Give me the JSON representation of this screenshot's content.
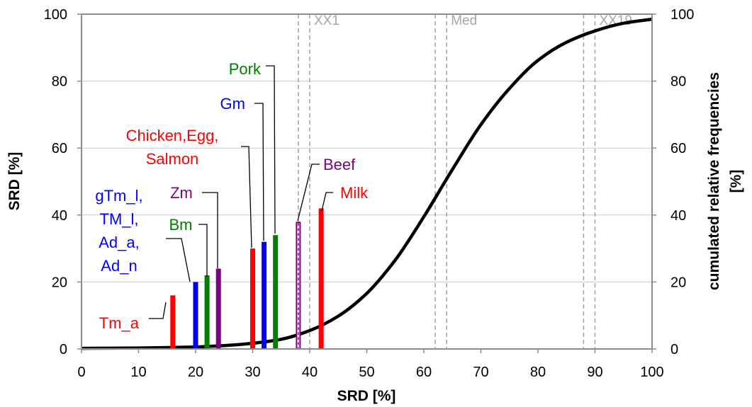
{
  "chart_data": {
    "type": "bar",
    "title": "",
    "xlabel": "SRD [%]",
    "ylabel": "SRD [%]",
    "y2label_line1": "cumulated relative frequencies",
    "y2label_line2": "[%]",
    "xlim": [
      0,
      100
    ],
    "ylim": [
      0,
      100
    ],
    "y2lim": [
      0,
      100
    ],
    "x_ticks": [
      0,
      10,
      20,
      30,
      40,
      50,
      60,
      70,
      80,
      90,
      100
    ],
    "y_ticks": [
      0,
      20,
      40,
      60,
      80,
      100
    ],
    "y2_ticks": [
      0,
      20,
      40,
      60,
      80,
      100
    ],
    "grid": "horizontal",
    "colors": {
      "red": "#ff0000",
      "blue": "#0000ff",
      "green": "#008000",
      "purple": "#7f007f",
      "curve": "#000000",
      "reference": "#a6a6a6"
    },
    "bars": [
      {
        "x": 16,
        "value": 16,
        "color": "red"
      },
      {
        "x": 20,
        "value": 20,
        "color": "blue"
      },
      {
        "x": 22,
        "value": 22,
        "color": "green"
      },
      {
        "x": 24,
        "value": 24,
        "color": "purple"
      },
      {
        "x": 30,
        "value": 30,
        "color": "red"
      },
      {
        "x": 32,
        "value": 32,
        "color": "blue"
      },
      {
        "x": 34,
        "value": 34,
        "color": "green"
      },
      {
        "x": 38,
        "value": 38,
        "color": "purple",
        "hatched": true
      },
      {
        "x": 42,
        "value": 42,
        "color": "red"
      }
    ],
    "bar_labels": [
      {
        "lines": [
          "Tm_a"
        ],
        "color": "red"
      },
      {
        "lines": [
          "gTm_l,",
          "TM_l,",
          "Ad_a,",
          "Ad_n"
        ],
        "color": "blue"
      },
      {
        "lines": [
          "Bm"
        ],
        "color": "green"
      },
      {
        "lines": [
          "Zm"
        ],
        "color": "purple"
      },
      {
        "lines": [
          "Chicken,Egg,",
          "Salmon"
        ],
        "color": "red"
      },
      {
        "lines": [
          "Gm"
        ],
        "color": "blue"
      },
      {
        "lines": [
          "Pork"
        ],
        "color": "green"
      },
      {
        "lines": [
          "Beef"
        ],
        "color": "purple"
      },
      {
        "lines": [
          "Milk"
        ],
        "color": "red"
      }
    ],
    "cumulative_curve": {
      "x": [
        0,
        10,
        20,
        25,
        30,
        35,
        40,
        45,
        50,
        55,
        60,
        65,
        70,
        75,
        80,
        85,
        90,
        95,
        100
      ],
      "y": [
        0.2,
        0.3,
        0.6,
        1.0,
        1.7,
        2.9,
        5.5,
        9.8,
        16.6,
        26.6,
        39.5,
        53.6,
        67.0,
        77.8,
        86.2,
        91.6,
        95.0,
        97.3,
        98.5
      ]
    },
    "reference_lines": [
      {
        "label": "XX1",
        "x": [
          38,
          40
        ]
      },
      {
        "label": "Med",
        "x": [
          62,
          64
        ]
      },
      {
        "label": "XX19",
        "x": [
          88,
          90
        ]
      }
    ]
  }
}
